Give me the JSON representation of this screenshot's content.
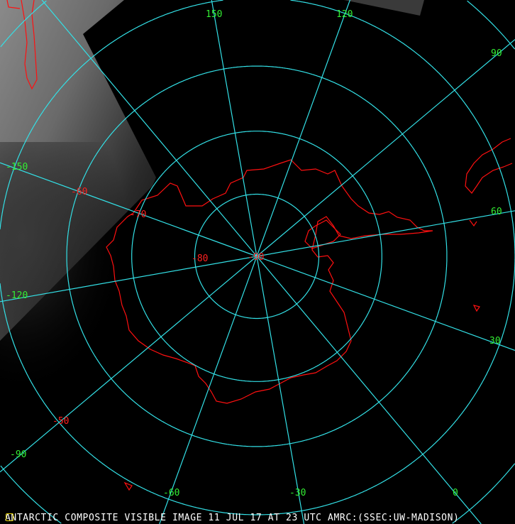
{
  "caption": "ANTARCTIC COMPOSITE VISIBLE IMAGE 11 JUL 17 AT 23 UTC AMRC:(SSEC:UW-MADISON)",
  "projection": "south-polar-stereographic",
  "colors": {
    "graticule": "#33e0e6",
    "longitude_labels": "#33ee33",
    "latitude_labels": "#ff2020",
    "coastline": "#ff1010",
    "caption": "#ffffff",
    "background": "#000000"
  },
  "graticule": {
    "latitudes": [
      -80,
      -70,
      -60,
      -50,
      -40
    ],
    "longitudes": [
      180,
      150,
      120,
      90,
      60,
      30,
      0,
      -30,
      -60,
      -90,
      -120,
      -150
    ]
  },
  "longitude_labels": [
    "150",
    "120",
    "90",
    "60",
    "30",
    "0",
    "-30",
    "-60",
    "-90",
    "-120",
    "-150"
  ],
  "latitude_labels": [
    "-50",
    "-60",
    "-70",
    "-80",
    "-90"
  ],
  "icons": {
    "corner_marker": "logo-icon"
  }
}
